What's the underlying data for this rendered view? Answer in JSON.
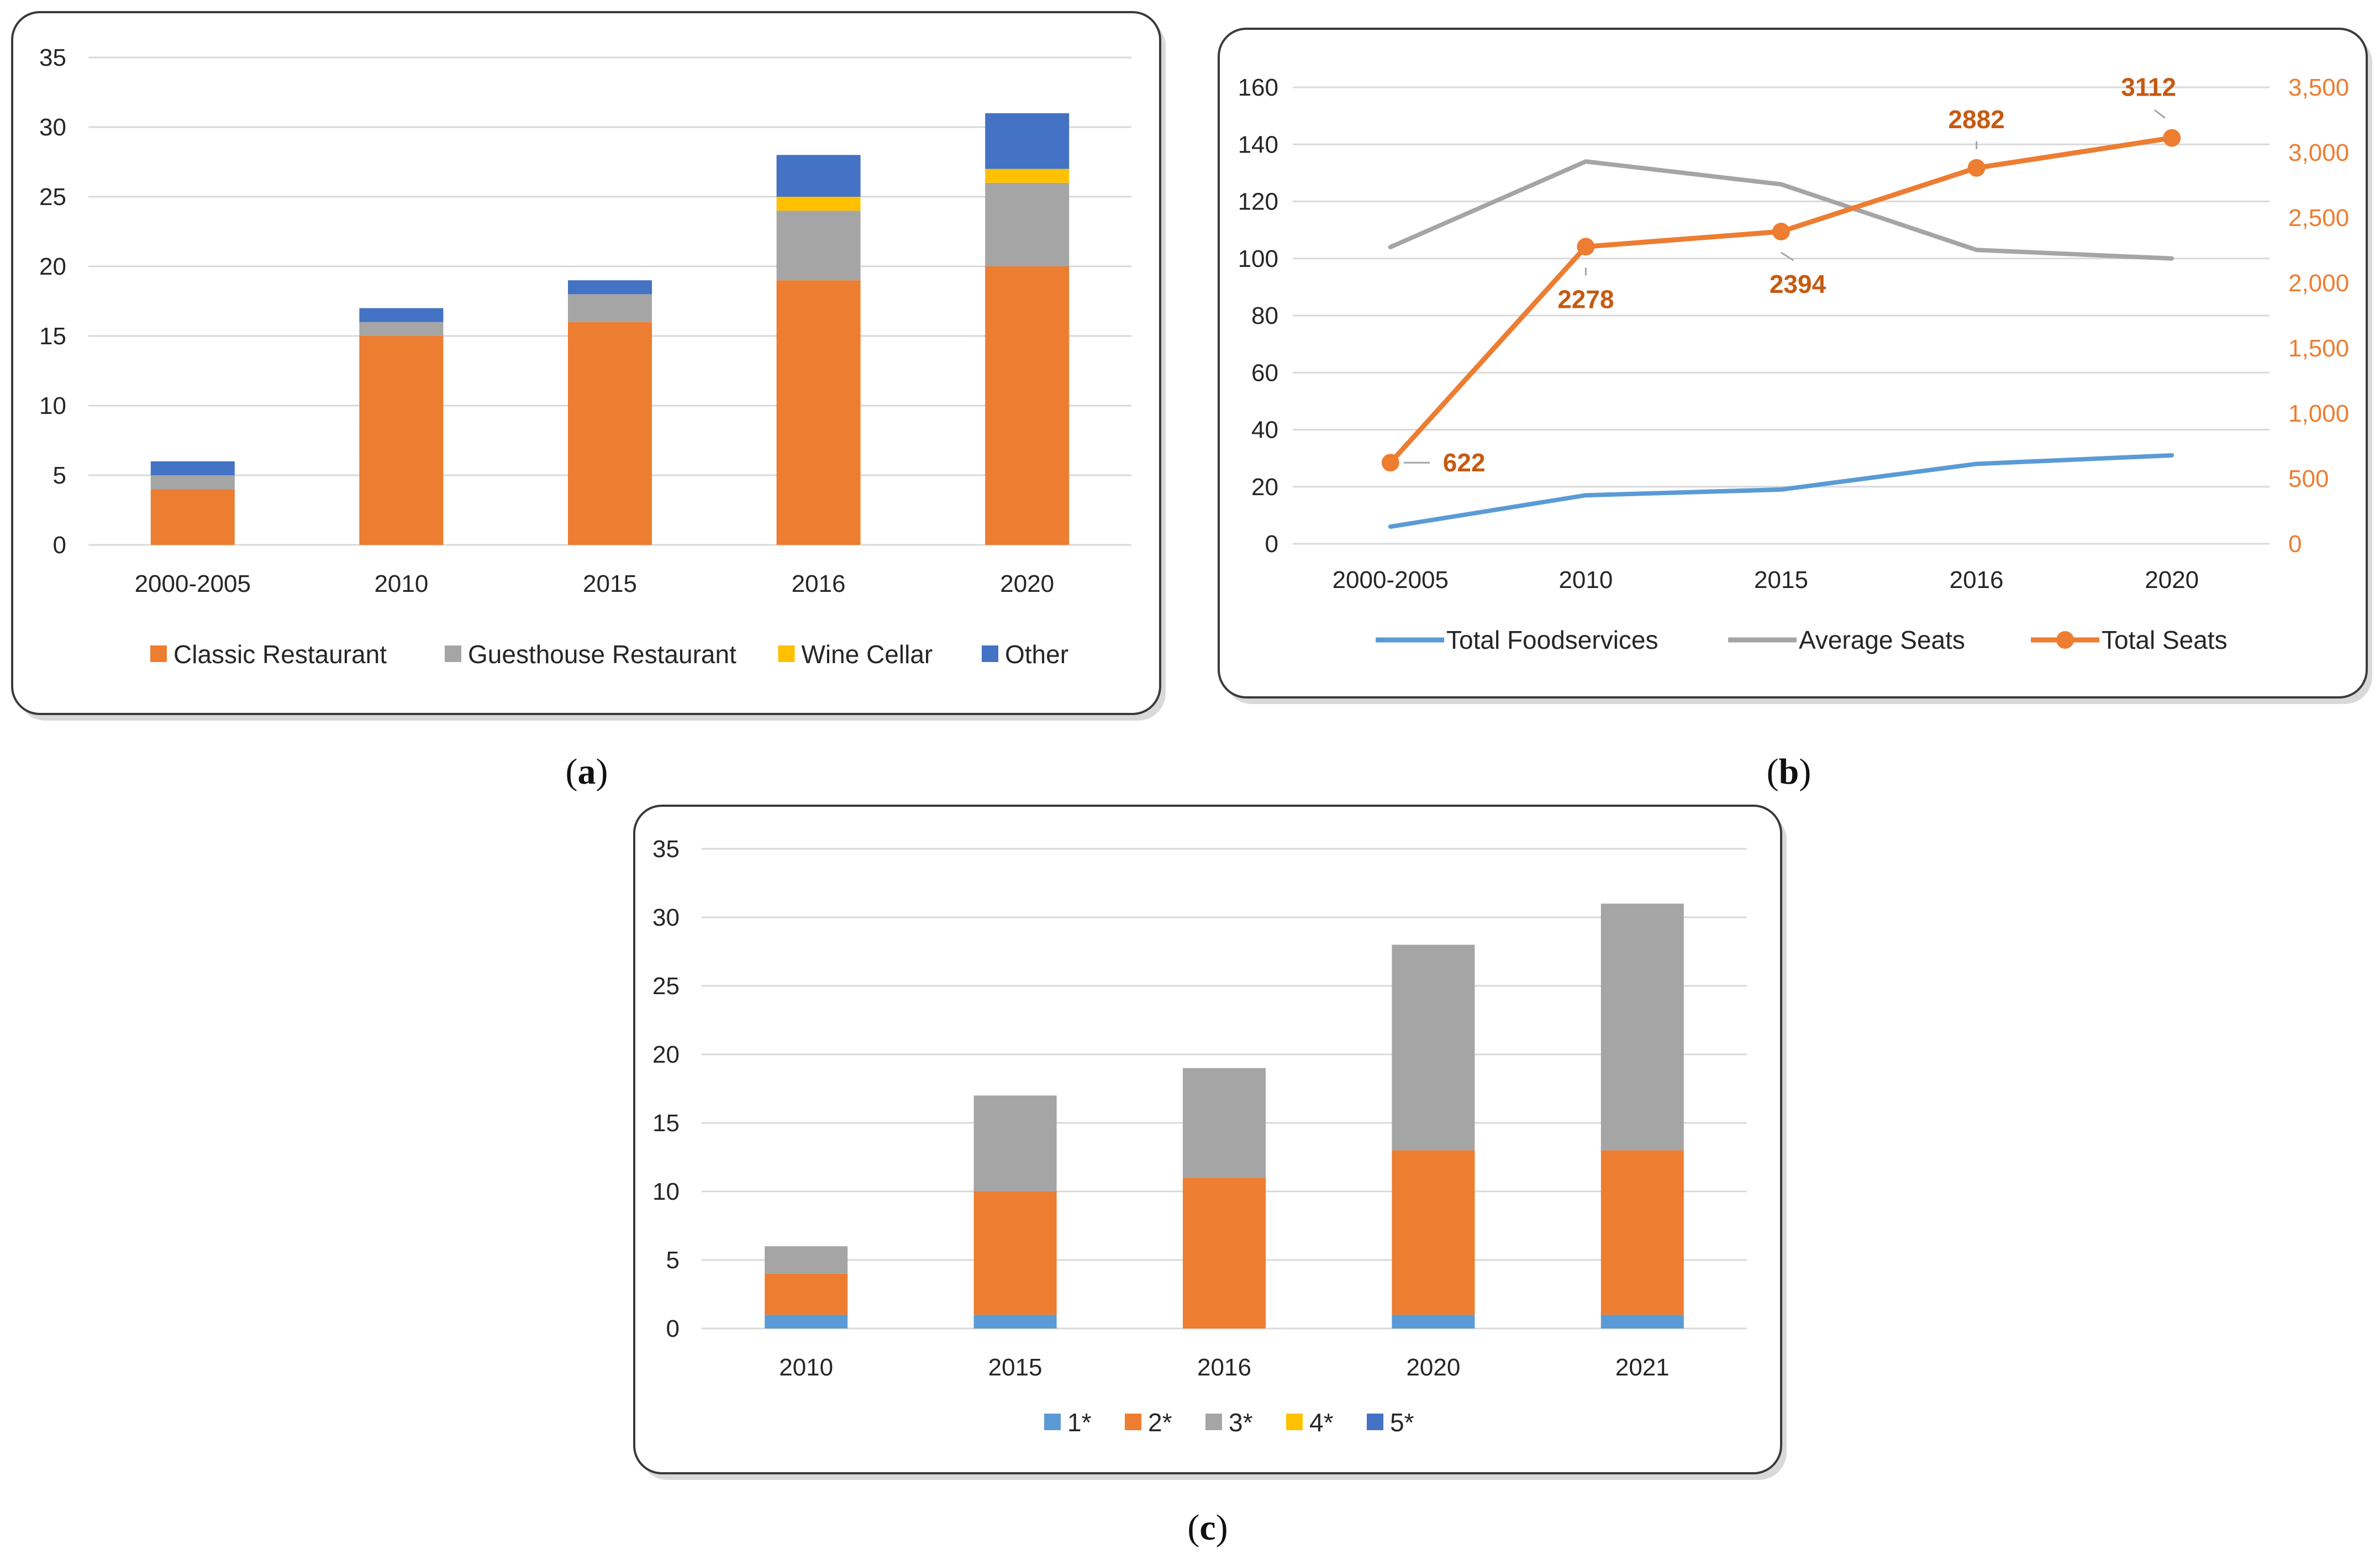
{
  "figure": {
    "panel_labels": [
      {
        "open": "(",
        "letter": "a",
        "close": ")"
      },
      {
        "open": "(",
        "letter": "b",
        "close": ")"
      },
      {
        "open": "(",
        "letter": "c",
        "close": ")"
      }
    ]
  },
  "colors": {
    "orange": "#ED7D31",
    "gray": "#A5A5A5",
    "yellow": "#FFC000",
    "blue": "#4472C4",
    "light_blue": "#5B9BD5",
    "label_orange": "#C55A11"
  },
  "chart_data": [
    {
      "id": "a",
      "type": "bar",
      "stacked": true,
      "categories": [
        "2000-2005",
        "2010",
        "2015",
        "2016",
        "2020"
      ],
      "series": [
        {
          "name": "Classic Restaurant",
          "color": "#ED7D31",
          "values": [
            4,
            15,
            16,
            19,
            20
          ]
        },
        {
          "name": "Guesthouse Restaurant",
          "color": "#A5A5A5",
          "values": [
            1,
            1,
            2,
            5,
            6
          ]
        },
        {
          "name": "Wine Cellar",
          "color": "#FFC000",
          "values": [
            0,
            0,
            0,
            1,
            1
          ]
        },
        {
          "name": "Other",
          "color": "#4472C4",
          "values": [
            1,
            1,
            1,
            3,
            4
          ]
        }
      ],
      "ylim": [
        0,
        35
      ],
      "yticks": [
        "0",
        "5",
        "10",
        "15",
        "20",
        "25",
        "30",
        "35"
      ],
      "grid": true,
      "legend": "bottom"
    },
    {
      "id": "b",
      "type": "line",
      "categories": [
        "2000-2005",
        "2010",
        "2015",
        "2016",
        "2020"
      ],
      "series": [
        {
          "name": "Total Foodservices",
          "axis": "left",
          "color": "#5B9BD5",
          "markers": false,
          "values": [
            6,
            17,
            19,
            28,
            31
          ]
        },
        {
          "name": "Average Seats",
          "axis": "left",
          "color": "#A5A5A5",
          "markers": false,
          "values": [
            104,
            134,
            126,
            103,
            100
          ]
        },
        {
          "name": "Total Seats",
          "axis": "right",
          "color": "#ED7D31",
          "markers": true,
          "values": [
            622,
            2278,
            2394,
            2882,
            3112
          ]
        }
      ],
      "data_labels": [
        "622",
        "2278",
        "2394",
        "2882",
        "3112"
      ],
      "ylim_left": [
        0,
        160
      ],
      "yticks_left": [
        "0",
        "20",
        "40",
        "60",
        "80",
        "100",
        "120",
        "140",
        "160"
      ],
      "ylim_right": [
        0,
        3500
      ],
      "yticks_right": [
        "0",
        "500",
        "1,000",
        "1,500",
        "2,000",
        "2,500",
        "3,000",
        "3,500"
      ],
      "grid": true,
      "legend": "bottom"
    },
    {
      "id": "c",
      "type": "bar",
      "stacked": true,
      "categories": [
        "2010",
        "2015",
        "2016",
        "2020",
        "2021"
      ],
      "series": [
        {
          "name": "1*",
          "color": "#5B9BD5",
          "values": [
            1,
            1,
            0,
            1,
            1
          ]
        },
        {
          "name": "2*",
          "color": "#ED7D31",
          "values": [
            3,
            9,
            11,
            12,
            12
          ]
        },
        {
          "name": "3*",
          "color": "#A5A5A5",
          "values": [
            2,
            7,
            8,
            15,
            18
          ]
        },
        {
          "name": "4*",
          "color": "#FFC000",
          "values": [
            0,
            0,
            0,
            0,
            0
          ]
        },
        {
          "name": "5*",
          "color": "#4472C4",
          "values": [
            0,
            0,
            0,
            0,
            0
          ]
        }
      ],
      "ylim": [
        0,
        35
      ],
      "yticks": [
        "0",
        "5",
        "10",
        "15",
        "20",
        "25",
        "30",
        "35"
      ],
      "grid": true,
      "legend": "bottom"
    }
  ]
}
